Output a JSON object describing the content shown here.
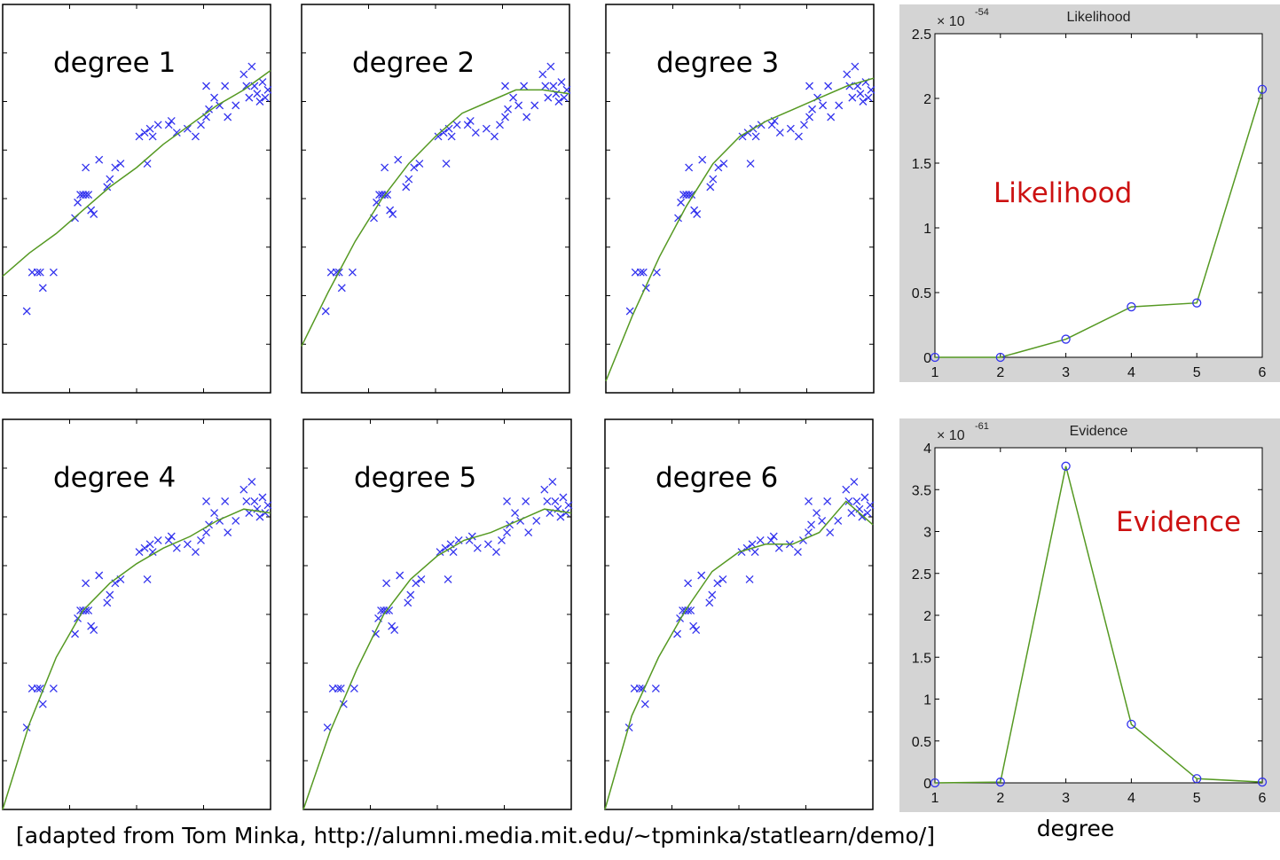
{
  "caption": "[adapted from Tom Minka, http://alumni.media.mit.edu/~tpminka/statlearn/demo/]",
  "colors": {
    "data_marker": "#3333ee",
    "fit_line": "#559922",
    "overlay_label": "#cc1111",
    "panel_bg": "#d4d4d4"
  },
  "points": [
    [
      0.09,
      0.21
    ],
    [
      0.11,
      0.31
    ],
    [
      0.13,
      0.31
    ],
    [
      0.15,
      0.27
    ],
    [
      0.14,
      0.31
    ],
    [
      0.19,
      0.31
    ],
    [
      0.27,
      0.45
    ],
    [
      0.28,
      0.49
    ],
    [
      0.29,
      0.51
    ],
    [
      0.3,
      0.51
    ],
    [
      0.31,
      0.58
    ],
    [
      0.31,
      0.51
    ],
    [
      0.32,
      0.51
    ],
    [
      0.33,
      0.47
    ],
    [
      0.34,
      0.46
    ],
    [
      0.36,
      0.6
    ],
    [
      0.39,
      0.53
    ],
    [
      0.4,
      0.55
    ],
    [
      0.42,
      0.58
    ],
    [
      0.44,
      0.59
    ],
    [
      0.51,
      0.66
    ],
    [
      0.53,
      0.67
    ],
    [
      0.54,
      0.59
    ],
    [
      0.55,
      0.68
    ],
    [
      0.56,
      0.66
    ],
    [
      0.58,
      0.69
    ],
    [
      0.62,
      0.69
    ],
    [
      0.63,
      0.7
    ],
    [
      0.65,
      0.67
    ],
    [
      0.69,
      0.68
    ],
    [
      0.72,
      0.66
    ],
    [
      0.74,
      0.69
    ],
    [
      0.76,
      0.71
    ],
    [
      0.76,
      0.79
    ],
    [
      0.77,
      0.73
    ],
    [
      0.79,
      0.76
    ],
    [
      0.81,
      0.74
    ],
    [
      0.83,
      0.79
    ],
    [
      0.84,
      0.71
    ],
    [
      0.87,
      0.74
    ],
    [
      0.9,
      0.82
    ],
    [
      0.91,
      0.79
    ],
    [
      0.92,
      0.76
    ],
    [
      0.93,
      0.84
    ],
    [
      0.94,
      0.79
    ],
    [
      0.95,
      0.77
    ],
    [
      0.96,
      0.75
    ],
    [
      0.97,
      0.8
    ],
    [
      0.98,
      0.76
    ],
    [
      0.99,
      0.78
    ]
  ],
  "fit_panels": [
    {
      "label": "degree 1",
      "fit": [
        [
          0,
          0.3
        ],
        [
          0.1,
          0.36
        ],
        [
          0.2,
          0.41
        ],
        [
          0.3,
          0.47
        ],
        [
          0.4,
          0.53
        ],
        [
          0.5,
          0.58
        ],
        [
          0.6,
          0.64
        ],
        [
          0.7,
          0.69
        ],
        [
          0.8,
          0.74
        ],
        [
          0.9,
          0.78
        ],
        [
          1.0,
          0.83
        ]
      ]
    },
    {
      "label": "degree 2",
      "fit": [
        [
          0,
          0.12
        ],
        [
          0.1,
          0.26
        ],
        [
          0.2,
          0.39
        ],
        [
          0.3,
          0.5
        ],
        [
          0.4,
          0.59
        ],
        [
          0.5,
          0.66
        ],
        [
          0.6,
          0.72
        ],
        [
          0.7,
          0.75
        ],
        [
          0.8,
          0.78
        ],
        [
          0.9,
          0.78
        ],
        [
          1.0,
          0.77
        ]
      ]
    },
    {
      "label": "degree 3",
      "fit": [
        [
          0,
          0.03
        ],
        [
          0.1,
          0.2
        ],
        [
          0.2,
          0.35
        ],
        [
          0.3,
          0.48
        ],
        [
          0.4,
          0.59
        ],
        [
          0.5,
          0.66
        ],
        [
          0.6,
          0.7
        ],
        [
          0.7,
          0.73
        ],
        [
          0.8,
          0.76
        ],
        [
          0.9,
          0.79
        ],
        [
          1.0,
          0.81
        ]
      ]
    },
    {
      "label": "degree 4",
      "fit": [
        [
          0,
          0.0
        ],
        [
          0.1,
          0.22
        ],
        [
          0.2,
          0.39
        ],
        [
          0.3,
          0.51
        ],
        [
          0.4,
          0.58
        ],
        [
          0.5,
          0.63
        ],
        [
          0.6,
          0.67
        ],
        [
          0.7,
          0.7
        ],
        [
          0.8,
          0.74
        ],
        [
          0.9,
          0.77
        ],
        [
          1.0,
          0.76
        ]
      ]
    },
    {
      "label": "degree 5",
      "fit": [
        [
          0,
          0.0
        ],
        [
          0.1,
          0.2
        ],
        [
          0.2,
          0.36
        ],
        [
          0.3,
          0.5
        ],
        [
          0.4,
          0.59
        ],
        [
          0.5,
          0.65
        ],
        [
          0.6,
          0.69
        ],
        [
          0.7,
          0.71
        ],
        [
          0.8,
          0.74
        ],
        [
          0.9,
          0.77
        ],
        [
          1.0,
          0.76
        ]
      ]
    },
    {
      "label": "degree 6",
      "fit": [
        [
          0,
          0.0
        ],
        [
          0.1,
          0.24
        ],
        [
          0.2,
          0.39
        ],
        [
          0.3,
          0.51
        ],
        [
          0.4,
          0.61
        ],
        [
          0.5,
          0.66
        ],
        [
          0.6,
          0.68
        ],
        [
          0.7,
          0.68
        ],
        [
          0.8,
          0.71
        ],
        [
          0.9,
          0.79
        ],
        [
          1.0,
          0.73
        ]
      ]
    }
  ],
  "chart_data": [
    {
      "type": "line",
      "title": "Likelihood",
      "overlay_label": "Likelihood",
      "exponent_label": "× 10",
      "exponent": "-54",
      "x": [
        1,
        2,
        3,
        4,
        5,
        6
      ],
      "series": [
        {
          "values": [
            0,
            0,
            0.14,
            0.39,
            0.42,
            2.07
          ]
        }
      ],
      "xlim": [
        1,
        6
      ],
      "ylim": [
        0,
        2.5
      ],
      "xticks": [
        "1",
        "2",
        "3",
        "4",
        "5",
        "6"
      ],
      "yticks": [
        "0",
        "0.5",
        "1",
        "1.5",
        "2",
        "2.5"
      ],
      "xlabel": "",
      "grid": false
    },
    {
      "type": "line",
      "title": "Evidence",
      "overlay_label": "Evidence",
      "exponent_label": "× 10",
      "exponent": "-61",
      "x": [
        1,
        2,
        3,
        4,
        5,
        6
      ],
      "series": [
        {
          "values": [
            0,
            0.01,
            3.78,
            0.7,
            0.05,
            0.01
          ]
        }
      ],
      "xlim": [
        1,
        6
      ],
      "ylim": [
        0,
        4
      ],
      "xticks": [
        "1",
        "2",
        "3",
        "4",
        "5",
        "6"
      ],
      "yticks": [
        "0",
        "0.5",
        "1",
        "1.5",
        "2",
        "2.5",
        "3",
        "3.5",
        "4"
      ],
      "xlabel": "degree",
      "grid": false
    }
  ]
}
